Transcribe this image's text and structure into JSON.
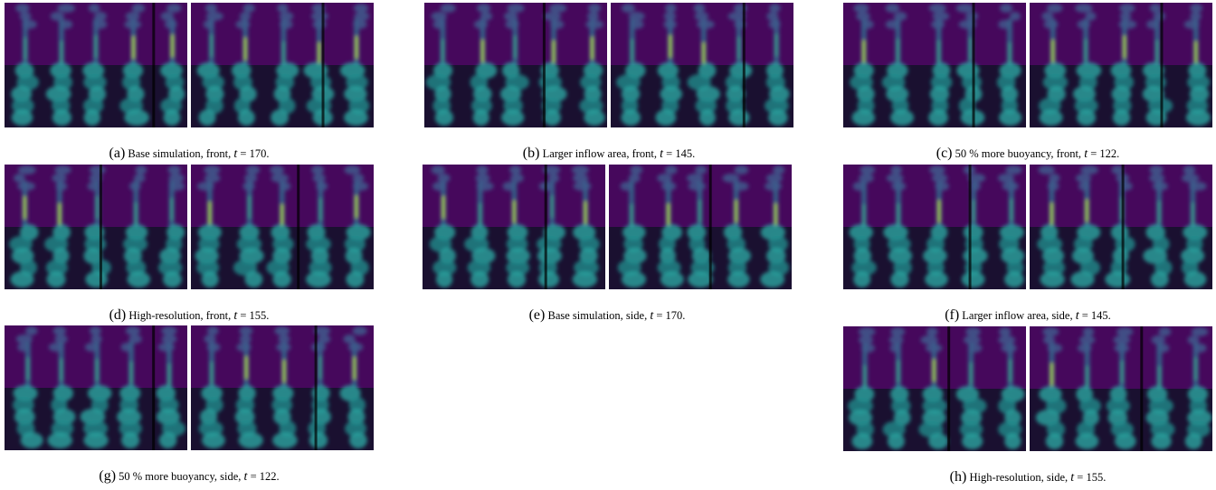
{
  "panels": [
    {
      "label": "(a)",
      "text": "Base simulation, front,",
      "variable": "t",
      "rest": "= 170."
    },
    {
      "label": "(b)",
      "text": "Larger inflow area, front,",
      "variable": "t",
      "rest": "= 145."
    },
    {
      "label": "(c)",
      "text": "50 % more buoyancy, front,",
      "variable": "t",
      "rest": "= 122."
    },
    {
      "label": "(d)",
      "text": "High-resolution, front,",
      "variable": "t",
      "rest": "= 155."
    },
    {
      "label": "(e)",
      "text": "Base simulation, side,",
      "variable": "t",
      "rest": "= 170."
    },
    {
      "label": "(f)",
      "text": "Larger inflow area, side,",
      "variable": "t",
      "rest": "= 145."
    },
    {
      "label": "(g)",
      "text": "50 % more buoyancy, side,",
      "variable": "t",
      "rest": "= 122."
    },
    {
      "label": "(h)",
      "text": "High-resolution, side,",
      "variable": "t",
      "rest": "= 155."
    }
  ]
}
